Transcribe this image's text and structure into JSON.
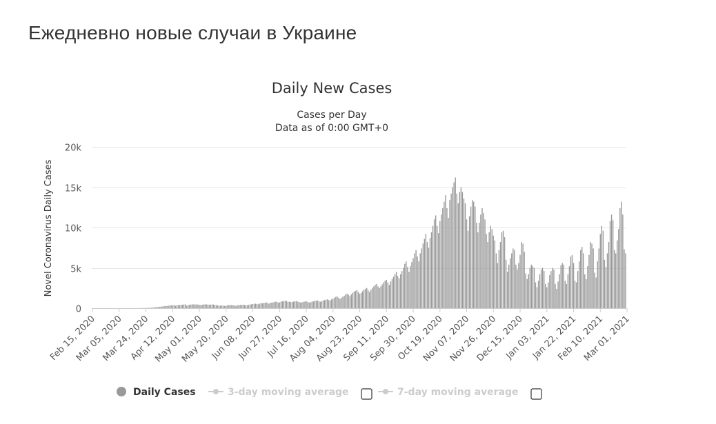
{
  "page": {
    "heading": "Ежедневно новые случаи в Украине"
  },
  "legend": [
    {
      "label": "Daily Cases",
      "active": true,
      "color": "#999999"
    },
    {
      "label": "3-day moving average",
      "active": false,
      "color": "#cccccc"
    },
    {
      "label": "7-day moving average",
      "active": false,
      "color": "#cccccc"
    }
  ],
  "colors": {
    "bar": "#999999",
    "grid": "#e6e6e6",
    "text": "#333333",
    "legend_inactive": "#cccccc"
  },
  "chart_data": {
    "type": "bar",
    "title": "Daily New Cases",
    "subtitle_lines": [
      "Cases per Day",
      "Data as of 0:00 GMT+0"
    ],
    "xlabel": "",
    "ylabel": "Novel Coronavirus Daily Cases",
    "ylim": [
      0,
      20000
    ],
    "y_ticks": [
      0,
      5000,
      10000,
      15000,
      20000
    ],
    "y_tick_labels": [
      "0",
      "5k",
      "10k",
      "15k",
      "20k"
    ],
    "x_start": "2020-02-15",
    "x_end": "2021-03-12",
    "x_tick_labels": [
      "Feb 15, 2020",
      "Mar 05, 2020",
      "Mar 24, 2020",
      "Apr 12, 2020",
      "May 01, 2020",
      "May 20, 2020",
      "Jun 08, 2020",
      "Jun 27, 2020",
      "Jul 16, 2020",
      "Aug 04, 2020",
      "Aug 23, 2020",
      "Sep 11, 2020",
      "Sep 30, 2020",
      "Oct 19, 2020",
      "Nov 07, 2020",
      "Nov 26, 2020",
      "Dec 15, 2020",
      "Jan 03, 2021",
      "Jan 22, 2021",
      "Feb 10, 2021",
      "Mar 01, 2021"
    ],
    "grid": true,
    "legend_position": "bottom",
    "series": [
      {
        "name": "Daily Cases",
        "values": [
          0,
          0,
          0,
          0,
          0,
          0,
          0,
          0,
          0,
          0,
          0,
          0,
          0,
          0,
          0,
          0,
          0,
          0,
          0,
          0,
          0,
          0,
          0,
          0,
          0,
          0,
          0,
          0,
          0,
          0,
          0,
          0,
          3,
          5,
          8,
          12,
          15,
          20,
          25,
          30,
          40,
          50,
          60,
          80,
          100,
          130,
          150,
          160,
          180,
          200,
          220,
          250,
          280,
          260,
          310,
          330,
          340,
          360,
          380,
          300,
          350,
          380,
          400,
          420,
          430,
          460,
          480,
          300,
          400,
          420,
          450,
          480,
          460,
          450,
          470,
          450,
          420,
          400,
          430,
          460,
          480,
          460,
          450,
          420,
          440,
          460,
          450,
          400,
          380,
          350,
          300,
          320,
          340,
          300,
          280,
          310,
          360,
          380,
          400,
          380,
          360,
          330,
          300,
          350,
          380,
          400,
          420,
          410,
          400,
          380,
          360,
          410,
          450,
          480,
          520,
          540,
          560,
          520,
          480,
          580,
          620,
          600,
          660,
          680,
          720,
          550,
          600,
          680,
          700,
          750,
          800,
          820,
          700,
          720,
          800,
          850,
          880,
          920,
          900,
          780,
          800,
          780,
          760,
          820,
          860,
          880,
          800,
          760,
          700,
          740,
          780,
          820,
          850,
          780,
          700,
          720,
          800,
          850,
          900,
          920,
          950,
          860,
          800,
          860,
          950,
          1000,
          1050,
          1100,
          1000,
          950,
          1100,
          1200,
          1300,
          1400,
          1450,
          1300,
          1150,
          1300,
          1400,
          1550,
          1700,
          1800,
          1650,
          1500,
          1700,
          1900,
          2050,
          2150,
          2250,
          2000,
          1800,
          1900,
          2100,
          2300,
          2400,
          2500,
          2200,
          2000,
          2300,
          2500,
          2700,
          2900,
          3000,
          2700,
          2500,
          2700,
          2950,
          3200,
          3400,
          3500,
          3200,
          2900,
          3300,
          3600,
          3900,
          4200,
          4500,
          4000,
          3700,
          4200,
          4600,
          5000,
          5500,
          5800,
          5100,
          4500,
          5200,
          5700,
          6200,
          6800,
          7200,
          6400,
          5800,
          6800,
          7400,
          8000,
          8600,
          9200,
          8200,
          7500,
          8700,
          9400,
          10200,
          11000,
          11500,
          10200,
          9300,
          10800,
          11600,
          12400,
          13200,
          14000,
          12400,
          11200,
          13400,
          14200,
          15000,
          15600,
          16200,
          14200,
          13000,
          14400,
          15000,
          14400,
          13600,
          13000,
          11000,
          9600,
          11400,
          12600,
          13400,
          13200,
          12600,
          10600,
          9400,
          10600,
          11600,
          12400,
          11800,
          11000,
          9200,
          8200,
          9400,
          10200,
          9800,
          9000,
          8400,
          6800,
          5600,
          7200,
          8200,
          9400,
          9600,
          8800,
          6000,
          4500,
          5400,
          6200,
          6800,
          7400,
          7200,
          5400,
          4800,
          5600,
          6600,
          8200,
          8000,
          7000,
          4300,
          3600,
          4200,
          5000,
          5400,
          5200,
          5000,
          3200,
          2600,
          3400,
          4200,
          4800,
          5000,
          4600,
          3000,
          2600,
          3200,
          4100,
          4600,
          5000,
          4800,
          3000,
          2400,
          3300,
          4200,
          5300,
          5600,
          5400,
          3400,
          3000,
          4200,
          5200,
          6400,
          6600,
          5600,
          3400,
          3200,
          4600,
          5800,
          7200,
          7600,
          6800,
          4200,
          3600,
          5200,
          6600,
          8200,
          8000,
          7400,
          4400,
          3800,
          5800,
          7400,
          9200,
          10200,
          9600,
          6000,
          5100,
          6800,
          8200,
          10800,
          11600,
          10900,
          7200,
          6800,
          8400,
          9800,
          12400,
          13200,
          11600,
          7300,
          6800
        ]
      }
    ]
  }
}
